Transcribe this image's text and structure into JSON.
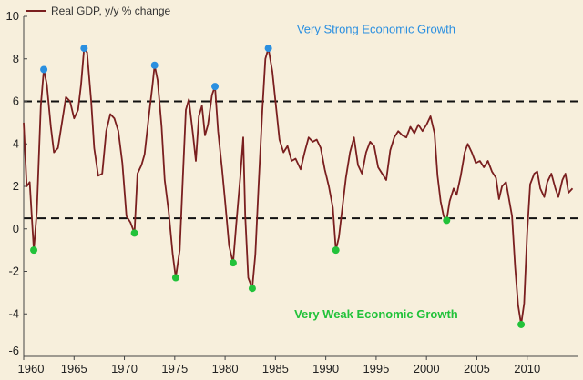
{
  "chart_data": {
    "type": "line",
    "legend": "Real GDP, y/y % change",
    "legend_placement": "top-left",
    "xlim": [
      1960,
      2015
    ],
    "ylim": [
      -6,
      10
    ],
    "x_ticks": [
      1960,
      1965,
      1970,
      1975,
      1980,
      1985,
      1990,
      1995,
      2000,
      2005,
      2010
    ],
    "y_ticks": [
      -6,
      -4,
      -2,
      0,
      2,
      4,
      6,
      8,
      10
    ],
    "grid": false,
    "colors": {
      "line": "#7a1f1f",
      "high_dot": "#2a8fe0",
      "low_dot": "#22c23a",
      "threshold": "#111111",
      "background": "#f7efdc"
    },
    "thresholds": [
      6.0,
      0.5
    ],
    "annotations": [
      {
        "text": "Very Strong Economic Growth",
        "x": 1995,
        "y": 9.2
      },
      {
        "text": "Very Weak Economic Growth",
        "x": 1995,
        "y": -4.2
      }
    ],
    "series": [
      {
        "name": "Real GDP, y/y % change",
        "points": [
          [
            1960.0,
            5.0
          ],
          [
            1960.3,
            2.0
          ],
          [
            1960.6,
            2.2
          ],
          [
            1961.0,
            -1.0
          ],
          [
            1961.3,
            0.8
          ],
          [
            1961.7,
            5.8
          ],
          [
            1962.0,
            7.5
          ],
          [
            1962.3,
            6.8
          ],
          [
            1962.7,
            4.8
          ],
          [
            1963.0,
            3.6
          ],
          [
            1963.4,
            3.8
          ],
          [
            1963.8,
            5.0
          ],
          [
            1964.2,
            6.2
          ],
          [
            1964.6,
            6.0
          ],
          [
            1965.0,
            5.2
          ],
          [
            1965.4,
            5.6
          ],
          [
            1965.7,
            6.8
          ],
          [
            1966.0,
            8.5
          ],
          [
            1966.3,
            8.3
          ],
          [
            1966.7,
            6.0
          ],
          [
            1967.0,
            3.8
          ],
          [
            1967.4,
            2.5
          ],
          [
            1967.8,
            2.6
          ],
          [
            1968.2,
            4.6
          ],
          [
            1968.6,
            5.4
          ],
          [
            1969.0,
            5.2
          ],
          [
            1969.4,
            4.6
          ],
          [
            1969.8,
            3.1
          ],
          [
            1970.2,
            0.6
          ],
          [
            1970.6,
            0.3
          ],
          [
            1971.0,
            -0.2
          ],
          [
            1971.3,
            2.6
          ],
          [
            1971.7,
            3.0
          ],
          [
            1972.0,
            3.5
          ],
          [
            1972.4,
            5.2
          ],
          [
            1972.8,
            6.8
          ],
          [
            1973.0,
            7.7
          ],
          [
            1973.3,
            7.0
          ],
          [
            1973.7,
            4.8
          ],
          [
            1974.0,
            2.3
          ],
          [
            1974.4,
            0.8
          ],
          [
            1974.8,
            -1.2
          ],
          [
            1975.1,
            -2.3
          ],
          [
            1975.5,
            -1.0
          ],
          [
            1975.8,
            2.4
          ],
          [
            1976.1,
            5.6
          ],
          [
            1976.4,
            6.1
          ],
          [
            1976.8,
            4.5
          ],
          [
            1977.1,
            3.2
          ],
          [
            1977.4,
            5.3
          ],
          [
            1977.7,
            5.8
          ],
          [
            1978.0,
            4.4
          ],
          [
            1978.3,
            4.9
          ],
          [
            1978.7,
            6.3
          ],
          [
            1979.0,
            6.7
          ],
          [
            1979.3,
            4.6
          ],
          [
            1979.7,
            2.8
          ],
          [
            1980.0,
            1.3
          ],
          [
            1980.4,
            -0.8
          ],
          [
            1980.8,
            -1.6
          ],
          [
            1981.1,
            0.2
          ],
          [
            1981.5,
            2.4
          ],
          [
            1981.8,
            4.3
          ],
          [
            1982.0,
            0.6
          ],
          [
            1982.3,
            -2.3
          ],
          [
            1982.7,
            -2.8
          ],
          [
            1983.0,
            -1.2
          ],
          [
            1983.3,
            1.8
          ],
          [
            1983.7,
            5.6
          ],
          [
            1984.0,
            8.0
          ],
          [
            1984.3,
            8.5
          ],
          [
            1984.7,
            7.4
          ],
          [
            1985.0,
            6.0
          ],
          [
            1985.4,
            4.2
          ],
          [
            1985.8,
            3.6
          ],
          [
            1986.2,
            3.9
          ],
          [
            1986.6,
            3.2
          ],
          [
            1987.0,
            3.3
          ],
          [
            1987.5,
            2.8
          ],
          [
            1987.9,
            3.6
          ],
          [
            1988.3,
            4.3
          ],
          [
            1988.7,
            4.1
          ],
          [
            1989.1,
            4.2
          ],
          [
            1989.5,
            3.8
          ],
          [
            1989.9,
            2.8
          ],
          [
            1990.3,
            2.0
          ],
          [
            1990.7,
            1.0
          ],
          [
            1991.0,
            -1.0
          ],
          [
            1991.3,
            -0.4
          ],
          [
            1991.7,
            1.2
          ],
          [
            1992.0,
            2.4
          ],
          [
            1992.4,
            3.6
          ],
          [
            1992.8,
            4.3
          ],
          [
            1993.2,
            3.0
          ],
          [
            1993.6,
            2.6
          ],
          [
            1994.0,
            3.6
          ],
          [
            1994.4,
            4.1
          ],
          [
            1994.8,
            3.9
          ],
          [
            1995.2,
            2.9
          ],
          [
            1995.6,
            2.6
          ],
          [
            1996.0,
            2.3
          ],
          [
            1996.4,
            3.7
          ],
          [
            1996.8,
            4.3
          ],
          [
            1997.2,
            4.6
          ],
          [
            1997.6,
            4.4
          ],
          [
            1998.0,
            4.3
          ],
          [
            1998.4,
            4.8
          ],
          [
            1998.8,
            4.5
          ],
          [
            1999.2,
            4.9
          ],
          [
            1999.6,
            4.6
          ],
          [
            2000.0,
            4.9
          ],
          [
            2000.4,
            5.3
          ],
          [
            2000.8,
            4.5
          ],
          [
            2001.1,
            2.5
          ],
          [
            2001.4,
            1.3
          ],
          [
            2001.7,
            0.6
          ],
          [
            2002.0,
            0.4
          ],
          [
            2002.3,
            1.3
          ],
          [
            2002.7,
            1.9
          ],
          [
            2003.0,
            1.6
          ],
          [
            2003.4,
            2.5
          ],
          [
            2003.8,
            3.6
          ],
          [
            2004.1,
            4.0
          ],
          [
            2004.5,
            3.6
          ],
          [
            2004.9,
            3.1
          ],
          [
            2005.3,
            3.2
          ],
          [
            2005.7,
            2.9
          ],
          [
            2006.1,
            3.2
          ],
          [
            2006.5,
            2.7
          ],
          [
            2006.9,
            2.4
          ],
          [
            2007.2,
            1.4
          ],
          [
            2007.5,
            2.0
          ],
          [
            2007.9,
            2.2
          ],
          [
            2008.2,
            1.4
          ],
          [
            2008.5,
            0.6
          ],
          [
            2008.8,
            -1.8
          ],
          [
            2009.1,
            -3.6
          ],
          [
            2009.4,
            -4.5
          ],
          [
            2009.7,
            -3.5
          ],
          [
            2010.0,
            -0.2
          ],
          [
            2010.3,
            2.1
          ],
          [
            2010.7,
            2.6
          ],
          [
            2011.0,
            2.7
          ],
          [
            2011.3,
            1.9
          ],
          [
            2011.7,
            1.5
          ],
          [
            2012.0,
            2.2
          ],
          [
            2012.4,
            2.6
          ],
          [
            2012.8,
            1.9
          ],
          [
            2013.1,
            1.5
          ],
          [
            2013.5,
            2.3
          ],
          [
            2013.8,
            2.6
          ],
          [
            2014.1,
            1.7
          ],
          [
            2014.5,
            1.9
          ]
        ]
      }
    ],
    "highs": [
      [
        1962.0,
        7.5
      ],
      [
        1966.0,
        8.5
      ],
      [
        1973.0,
        7.7
      ],
      [
        1979.0,
        6.7
      ],
      [
        1984.3,
        8.5
      ]
    ],
    "lows": [
      [
        1961.0,
        -1.0
      ],
      [
        1971.0,
        -0.2
      ],
      [
        1975.1,
        -2.3
      ],
      [
        1980.8,
        -1.6
      ],
      [
        1982.7,
        -2.8
      ],
      [
        1991.0,
        -1.0
      ],
      [
        2002.0,
        0.4
      ],
      [
        2009.4,
        -4.5
      ]
    ]
  }
}
